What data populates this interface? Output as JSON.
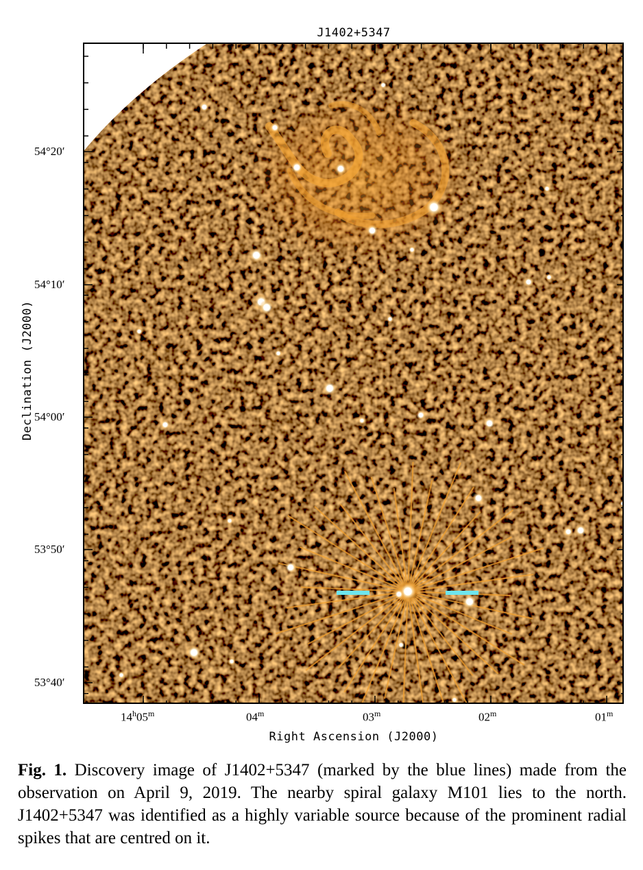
{
  "figure": {
    "title": "J1402+5347",
    "ylabel": "Declination (J2000)",
    "xlabel": "Right Ascension (J2000)",
    "yticks": [
      "54°20′",
      "54°10′",
      "54°00′",
      "53°50′",
      "53°40′"
    ],
    "xticks": [
      {
        "main": "14",
        "sup1": "h",
        "mid": "05",
        "sup2": "m"
      },
      {
        "main": "04",
        "sup1": "",
        "mid": "",
        "sup2": "m"
      },
      {
        "main": "03",
        "sup1": "",
        "mid": "",
        "sup2": "m"
      },
      {
        "main": "02",
        "sup1": "",
        "mid": "",
        "sup2": "m"
      },
      {
        "main": "01",
        "sup1": "",
        "mid": "",
        "sup2": "m"
      }
    ],
    "marker_color": "#6ee6ee",
    "background_color": "#2a1405",
    "glow_color": "#f0a030"
  },
  "caption": {
    "label": "Fig. 1.",
    "text": " Discovery image of J1402+5347 (marked by the blue lines) made from the observation on April 9, 2019. The nearby spiral galaxy M101 lies to the north. J1402+5347 was identified as a highly variable source because of the prominent radial spikes that are centred on it."
  }
}
